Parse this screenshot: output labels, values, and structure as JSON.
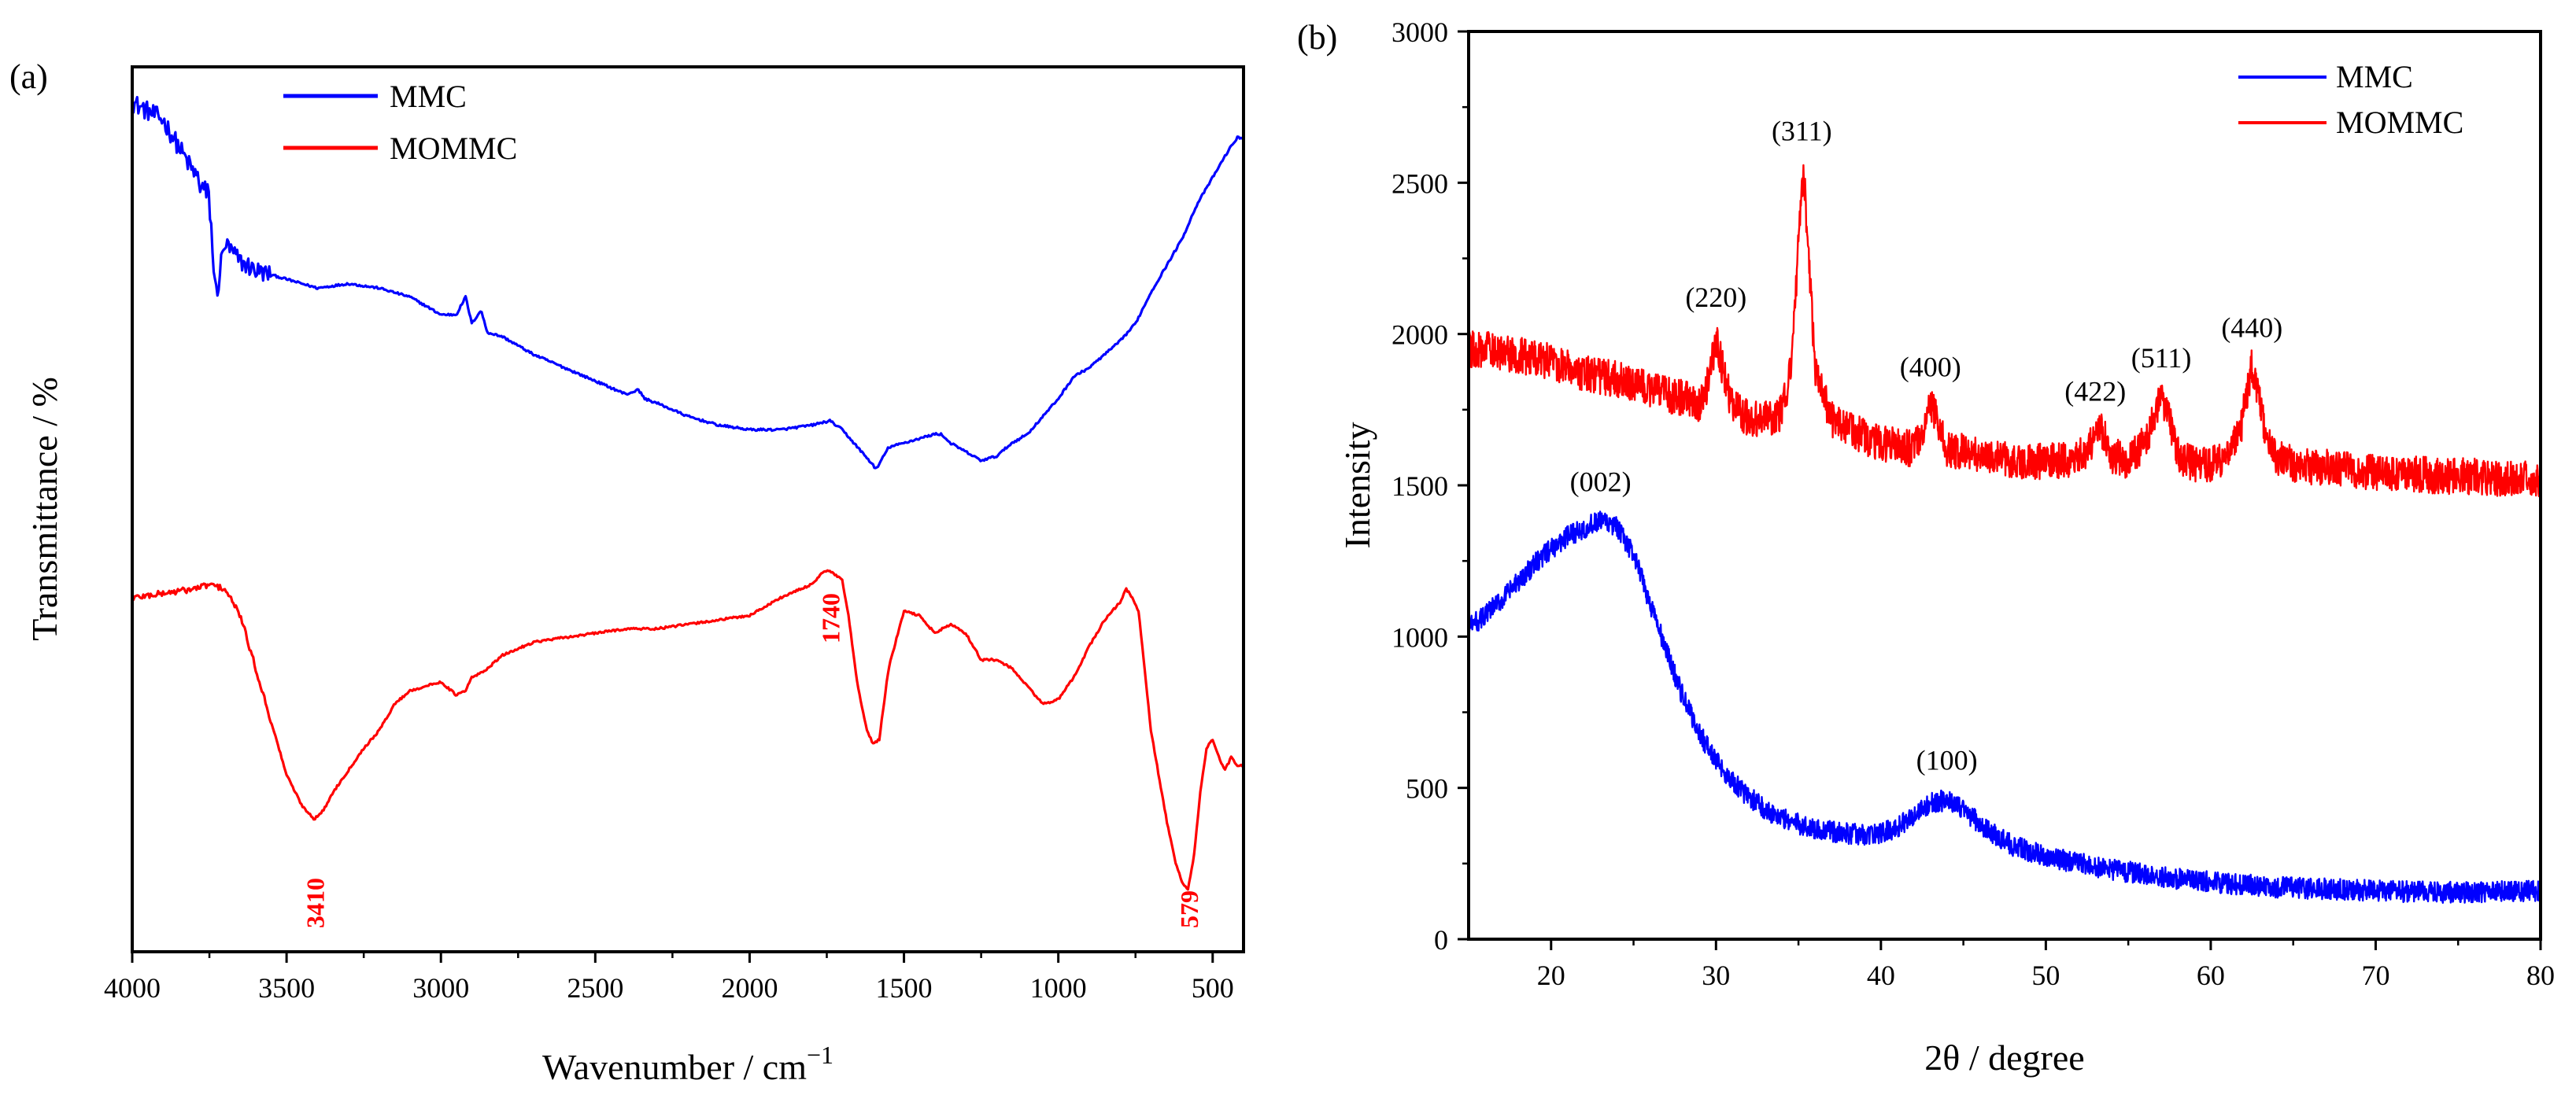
{
  "chart_data": [
    {
      "panel_label": "(a)",
      "type": "line",
      "title": "",
      "xlabel": "Wavenumber / cm",
      "xlabel_sup": "−1",
      "ylabel": "Transmittance / %",
      "xlim": [
        4000,
        400
      ],
      "x_ticks": [
        "4000",
        "3500",
        "3000",
        "2500",
        "2000",
        "1500",
        "1000",
        "500"
      ],
      "y_ticks_shown": false,
      "grid": false,
      "legend_position": "top-left",
      "series": [
        {
          "name": "MMC",
          "color": "#0000ff",
          "x": [
            4000,
            3900,
            3800,
            3750,
            3730,
            3700,
            3650,
            3600,
            3500,
            3400,
            3300,
            3200,
            3100,
            3000,
            2950,
            2920,
            2900,
            2870,
            2850,
            2800,
            2700,
            2600,
            2500,
            2400,
            2360,
            2340,
            2300,
            2200,
            2100,
            2000,
            1900,
            1800,
            1740,
            1700,
            1650,
            1600,
            1590,
            1550,
            1500,
            1450,
            1400,
            1380,
            1350,
            1300,
            1250,
            1200,
            1150,
            1100,
            1050,
            1000,
            950,
            900,
            850,
            800,
            750,
            700,
            650,
            600,
            550,
            500,
            450,
            420
          ],
          "values": [
            96,
            94,
            88,
            85,
            74,
            80,
            78,
            77,
            76,
            75,
            75.5,
            75,
            74,
            72,
            72,
            74,
            71,
            72.5,
            70,
            69.5,
            67.5,
            66,
            64.5,
            63,
            63.5,
            62.5,
            62,
            60.5,
            59.5,
            59,
            59,
            59.5,
            60,
            59,
            57,
            55,
            54.5,
            57,
            57.5,
            58,
            58.5,
            58.5,
            57.5,
            56.5,
            55.5,
            56,
            57.5,
            58.5,
            60.5,
            62.5,
            65,
            66,
            67.5,
            69,
            71,
            74.5,
            77.5,
            80.5,
            84.5,
            87.5,
            90.5,
            92
          ]
        },
        {
          "name": "MOMMC",
          "color": "#ff0000",
          "x": [
            4000,
            3900,
            3800,
            3750,
            3700,
            3650,
            3600,
            3550,
            3500,
            3450,
            3410,
            3380,
            3350,
            3300,
            3250,
            3200,
            3150,
            3100,
            3050,
            3000,
            2950,
            2920,
            2900,
            2870,
            2850,
            2800,
            2700,
            2600,
            2500,
            2400,
            2300,
            2200,
            2100,
            2000,
            1900,
            1800,
            1760,
            1740,
            1700,
            1680,
            1650,
            1620,
            1600,
            1580,
            1550,
            1500,
            1450,
            1400,
            1350,
            1300,
            1250,
            1200,
            1150,
            1100,
            1050,
            1000,
            950,
            900,
            850,
            800,
            780,
            760,
            740,
            700,
            650,
            620,
            600,
            580,
            560,
            540,
            520,
            500,
            480,
            460,
            440,
            420
          ],
          "values": [
            40,
            40.5,
            41,
            41.5,
            41,
            38,
            32,
            26,
            20,
            16.5,
            15,
            16,
            18,
            20.5,
            23,
            25,
            28,
            29.5,
            30,
            30.5,
            29,
            29.5,
            31,
            31.5,
            32,
            33.5,
            35,
            35.5,
            36,
            36.5,
            36.5,
            37,
            37.5,
            38,
            40,
            41.5,
            43,
            43,
            42,
            38,
            30,
            25,
            23.5,
            24,
            32,
            38.5,
            38,
            36,
            37,
            36,
            33,
            33,
            32,
            30,
            28,
            28.5,
            31,
            34.5,
            37.5,
            39.5,
            41,
            40,
            38.5,
            25,
            15,
            10,
            8,
            7,
            11,
            18,
            23,
            24,
            22,
            20.5,
            22,
            21
          ]
        }
      ],
      "annotations": [
        {
          "text": "3410",
          "color": "#ff0000",
          "x": 3410
        },
        {
          "text": "1740",
          "color": "#ff0000",
          "x": 1740
        },
        {
          "text": "579",
          "color": "#ff0000",
          "x": 579
        }
      ]
    },
    {
      "panel_label": "(b)",
      "type": "line",
      "title": "",
      "xlabel": "2θ / degree",
      "ylabel": "Intensity",
      "xlim": [
        15,
        80
      ],
      "ylim": [
        0,
        3000
      ],
      "x_ticks": [
        "20",
        "30",
        "40",
        "50",
        "60",
        "70",
        "80"
      ],
      "y_ticks": [
        "0",
        "500",
        "1000",
        "1500",
        "2000",
        "2500",
        "3000"
      ],
      "grid": false,
      "legend_position": "top-right",
      "series": [
        {
          "name": "MMC",
          "color": "#0000ff",
          "x": [
            15,
            16,
            17,
            18,
            19,
            20,
            21,
            22,
            23,
            24,
            25,
            26,
            27,
            28,
            29,
            30,
            31,
            32,
            33,
            34,
            35,
            36,
            37,
            38,
            39,
            40,
            41,
            42,
            43,
            44,
            45,
            46,
            47,
            48,
            49,
            50,
            52,
            54,
            56,
            58,
            60,
            62,
            64,
            66,
            68,
            70,
            72,
            74,
            76,
            78,
            80
          ],
          "values": [
            1030,
            1070,
            1120,
            1180,
            1240,
            1290,
            1330,
            1360,
            1380,
            1360,
            1270,
            1110,
            950,
            800,
            680,
            590,
            520,
            470,
            430,
            400,
            380,
            365,
            355,
            350,
            345,
            350,
            370,
            410,
            450,
            460,
            430,
            380,
            340,
            310,
            290,
            275,
            250,
            230,
            215,
            200,
            190,
            180,
            172,
            168,
            164,
            160,
            157,
            155,
            155,
            158,
            160
          ]
        },
        {
          "name": "MOMMC",
          "color": "#ff0000",
          "x": [
            15,
            16,
            17,
            18,
            19,
            20,
            21,
            22,
            23,
            24,
            25,
            26,
            27,
            28,
            29,
            29.6,
            30,
            30.5,
            31,
            32,
            33,
            34,
            34.6,
            35.0,
            35.3,
            35.6,
            36.0,
            37,
            38,
            39,
            40,
            41,
            42,
            42.6,
            43,
            43.6,
            44,
            45,
            46,
            47,
            48,
            49,
            50,
            51,
            52,
            52.8,
            53.4,
            54,
            55,
            56,
            56.5,
            57,
            57.5,
            58,
            59,
            60,
            61,
            61.8,
            62.5,
            63.2,
            64,
            65,
            66,
            67,
            68,
            69,
            70,
            72,
            74,
            76,
            78,
            80
          ],
          "values": [
            1950,
            1950,
            1940,
            1930,
            1920,
            1910,
            1890,
            1870,
            1860,
            1850,
            1840,
            1820,
            1800,
            1790,
            1770,
            1850,
            1990,
            1860,
            1760,
            1720,
            1720,
            1740,
            1900,
            2300,
            2550,
            2280,
            1880,
            1720,
            1690,
            1660,
            1640,
            1630,
            1620,
            1700,
            1770,
            1690,
            1620,
            1610,
            1600,
            1590,
            1580,
            1580,
            1580,
            1580,
            1590,
            1640,
            1680,
            1600,
            1580,
            1640,
            1720,
            1790,
            1720,
            1600,
            1570,
            1570,
            1590,
            1680,
            1900,
            1700,
            1590,
            1570,
            1560,
            1560,
            1550,
            1550,
            1540,
            1540,
            1530,
            1530,
            1520,
            1520
          ]
        }
      ],
      "annotations": [
        {
          "text": "(002)",
          "x": 23,
          "y": 1480
        },
        {
          "text": "(100)",
          "x": 44,
          "y": 560
        },
        {
          "text": "(220)",
          "x": 30,
          "y": 2090
        },
        {
          "text": "(311)",
          "x": 35.2,
          "y": 2640
        },
        {
          "text": "(400)",
          "x": 43,
          "y": 1860
        },
        {
          "text": "(422)",
          "x": 53,
          "y": 1780
        },
        {
          "text": "(511)",
          "x": 57,
          "y": 1890
        },
        {
          "text": "(440)",
          "x": 62.5,
          "y": 1990
        }
      ]
    }
  ]
}
